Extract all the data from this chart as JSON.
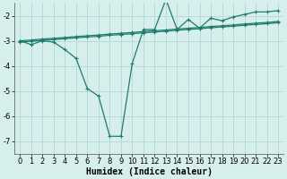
{
  "line1_x": [
    0,
    1,
    2,
    3,
    4,
    5,
    6,
    7,
    8,
    9,
    10,
    11,
    12,
    13,
    14,
    15,
    16,
    17,
    18,
    19,
    20,
    21,
    22,
    23
  ],
  "line1_y": [
    -3.0,
    -3.15,
    -3.0,
    -3.05,
    -3.35,
    -3.7,
    -4.9,
    -5.2,
    -6.8,
    -6.8,
    -3.9,
    -2.55,
    -2.55,
    -1.35,
    -2.55,
    -2.15,
    -2.5,
    -2.1,
    -2.2,
    -2.05,
    -1.95,
    -1.85,
    -1.85,
    -1.8
  ],
  "line2_x": [
    0,
    1,
    2,
    3,
    4,
    5,
    6,
    7,
    8,
    9,
    10,
    11,
    12,
    13,
    14,
    15,
    16,
    17,
    18,
    19,
    20,
    21,
    22,
    23
  ],
  "line2_y": [
    -3.0,
    -2.97,
    -2.93,
    -2.9,
    -2.87,
    -2.83,
    -2.8,
    -2.77,
    -2.73,
    -2.7,
    -2.67,
    -2.63,
    -2.6,
    -2.57,
    -2.53,
    -2.5,
    -2.47,
    -2.43,
    -2.4,
    -2.37,
    -2.33,
    -2.3,
    -2.27,
    -2.23
  ],
  "line3_x": [
    0,
    1,
    2,
    3,
    4,
    5,
    6,
    7,
    8,
    9,
    10,
    11,
    12,
    13,
    14,
    15,
    16,
    17,
    18,
    19,
    20,
    21,
    22,
    23
  ],
  "line3_y": [
    -3.05,
    -3.02,
    -2.98,
    -2.95,
    -2.92,
    -2.88,
    -2.85,
    -2.82,
    -2.78,
    -2.75,
    -2.72,
    -2.68,
    -2.65,
    -2.62,
    -2.58,
    -2.55,
    -2.52,
    -2.48,
    -2.45,
    -2.42,
    -2.38,
    -2.35,
    -2.32,
    -2.28
  ],
  "bg_color": "#d6efed",
  "grid_color": "#b8dbd8",
  "line_color": "#1e7b6e",
  "xlabel": "Humidex (Indice chaleur)",
  "xlim": [
    -0.5,
    23.5
  ],
  "ylim": [
    -7.5,
    -1.5
  ],
  "yticks": [
    -7,
    -6,
    -5,
    -4,
    -3,
    -2
  ],
  "xticks": [
    0,
    1,
    2,
    3,
    4,
    5,
    6,
    7,
    8,
    9,
    10,
    11,
    12,
    13,
    14,
    15,
    16,
    17,
    18,
    19,
    20,
    21,
    22,
    23
  ],
  "xlabel_fontsize": 7,
  "tick_fontsize": 6
}
